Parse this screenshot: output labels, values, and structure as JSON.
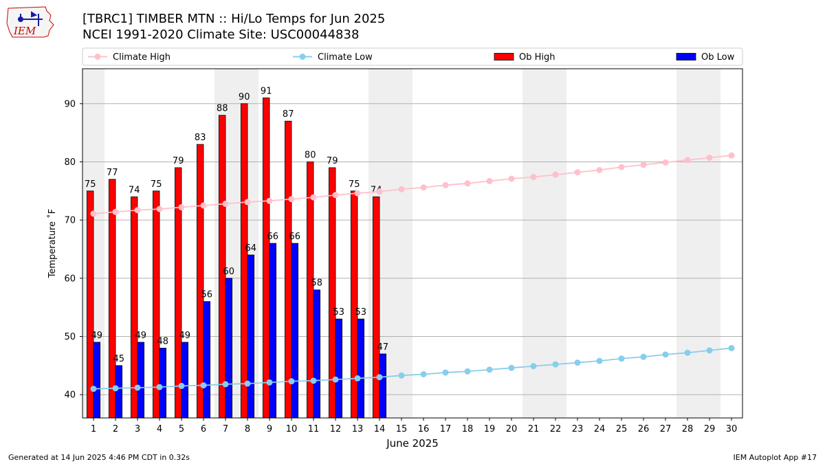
{
  "header": {
    "title_line1": "[TBRC1] TIMBER MTN :: Hi/Lo Temps for Jun 2025",
    "title_line2": "NCEI 1991-2020 Climate Site: USC00044838"
  },
  "logo": {
    "text": "IEM",
    "icon": "iem-iowa-map-logo",
    "color": "#cc0000"
  },
  "footer": {
    "left": "Generated at 14 Jun 2025 4:46 PM CDT in 0.32s",
    "right": "IEM Autoplot App #17"
  },
  "chart_data": {
    "type": "bar",
    "xlabel": "June 2025",
    "ylabel": "Temperature ˚F",
    "ylim": [
      36,
      96
    ],
    "xlim": [
      0.5,
      30.5
    ],
    "yticks": [
      40,
      50,
      60,
      70,
      80,
      90
    ],
    "days": [
      1,
      2,
      3,
      4,
      5,
      6,
      7,
      8,
      9,
      10,
      11,
      12,
      13,
      14,
      15,
      16,
      17,
      18,
      19,
      20,
      21,
      22,
      23,
      24,
      25,
      26,
      27,
      28,
      29,
      30
    ],
    "weekend_days": [
      1,
      7,
      8,
      14,
      15,
      21,
      22,
      28,
      29
    ],
    "grid": "horizontal",
    "legend_placement": "top, above plot",
    "legend": [
      "Climate High",
      "Climate Low",
      "Ob High",
      "Ob Low"
    ],
    "series": [
      {
        "name": "Ob High",
        "kind": "bar",
        "color": "#ff0000",
        "values": [
          75,
          77,
          74,
          75,
          79,
          83,
          88,
          90,
          91,
          87,
          80,
          79,
          75,
          74
        ]
      },
      {
        "name": "Ob Low",
        "kind": "bar",
        "color": "#0000ff",
        "values": [
          49,
          45,
          49,
          48,
          49,
          56,
          60,
          64,
          66,
          66,
          58,
          53,
          53,
          47
        ]
      },
      {
        "name": "Climate High",
        "kind": "line",
        "color": "#ffc0cb",
        "values": [
          71.1,
          71.4,
          71.7,
          71.9,
          72.2,
          72.5,
          72.8,
          73.1,
          73.3,
          73.6,
          73.9,
          74.3,
          74.6,
          74.9,
          75.3,
          75.6,
          76.0,
          76.3,
          76.7,
          77.1,
          77.4,
          77.8,
          78.2,
          78.6,
          79.1,
          79.5,
          79.9,
          80.3,
          80.7,
          81.1
        ]
      },
      {
        "name": "Climate Low",
        "kind": "line",
        "color": "#87ceeb",
        "values": [
          41.0,
          41.1,
          41.2,
          41.3,
          41.5,
          41.6,
          41.8,
          41.9,
          42.1,
          42.3,
          42.4,
          42.6,
          42.8,
          43.0,
          43.3,
          43.5,
          43.8,
          44.0,
          44.3,
          44.6,
          44.9,
          45.2,
          45.5,
          45.8,
          46.2,
          46.5,
          46.9,
          47.2,
          47.6,
          48.0
        ]
      }
    ]
  }
}
